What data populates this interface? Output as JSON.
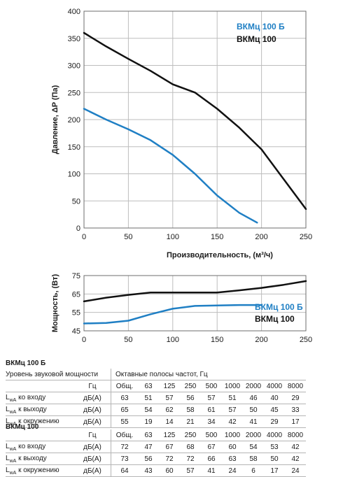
{
  "chart_data": [
    {
      "type": "line",
      "title": "",
      "xlabel": "Производительность, (м³/ч)",
      "ylabel": "Давление, ΔP (Па)",
      "xlim": [
        0,
        250
      ],
      "ylim": [
        0,
        400
      ],
      "xticks": [
        "0",
        "50",
        "100",
        "150",
        "200",
        "250"
      ],
      "yticks": [
        "0",
        "50",
        "100",
        "150",
        "200",
        "250",
        "300",
        "350",
        "400"
      ],
      "grid": true,
      "legend_position": "top-right",
      "series": [
        {
          "name": "ВКМц 100 Б",
          "color": "#1f7fc4",
          "x": [
            0,
            25,
            50,
            75,
            100,
            125,
            150,
            175,
            195
          ],
          "y": [
            220,
            200,
            182,
            162,
            135,
            100,
            60,
            28,
            10
          ]
        },
        {
          "name": "ВКМц 100",
          "color": "#111111",
          "x": [
            0,
            25,
            50,
            75,
            100,
            125,
            150,
            175,
            200,
            225,
            250
          ],
          "y": [
            360,
            335,
            312,
            290,
            265,
            250,
            220,
            185,
            145,
            90,
            35
          ]
        }
      ]
    },
    {
      "type": "line",
      "title": "",
      "xlabel": "",
      "ylabel": "Мощность, (Вт)",
      "xlim": [
        0,
        250
      ],
      "ylim": [
        45,
        75
      ],
      "xticks": [
        "0",
        "50",
        "100",
        "150",
        "200",
        "250"
      ],
      "yticks": [
        "45",
        "55",
        "65",
        "75"
      ],
      "grid": true,
      "legend_position": "right",
      "series": [
        {
          "name": "ВКМц 100 Б",
          "color": "#1f7fc4",
          "x": [
            0,
            25,
            50,
            75,
            100,
            125,
            150,
            175,
            200
          ],
          "y": [
            49,
            49.3,
            50.5,
            54,
            57,
            58.5,
            58.8,
            59,
            59
          ]
        },
        {
          "name": "ВКМц 100",
          "color": "#111111",
          "x": [
            0,
            25,
            50,
            75,
            100,
            125,
            150,
            175,
            200,
            225,
            250
          ],
          "y": [
            61,
            63,
            64.5,
            65.8,
            65.8,
            65.8,
            65.8,
            67,
            68.3,
            70,
            72
          ]
        }
      ]
    }
  ],
  "tables": [
    {
      "title": "ВКМц 100 Б",
      "header_label": "Уровень звуковой мощности",
      "header_bands_title": "Октавные полосы частот, Гц",
      "unit_header": "Гц",
      "columns": [
        "Общ.",
        "63",
        "125",
        "250",
        "500",
        "1000",
        "2000",
        "4000",
        "8000"
      ],
      "rows": [
        {
          "label": "LwA ко входу",
          "unit": "дБ(А)",
          "values": [
            "63",
            "51",
            "57",
            "56",
            "57",
            "51",
            "46",
            "40",
            "29"
          ]
        },
        {
          "label": "LwA к выходу",
          "unit": "дБ(А)",
          "values": [
            "65",
            "54",
            "62",
            "58",
            "61",
            "57",
            "50",
            "45",
            "33"
          ]
        },
        {
          "label": "LwA к окружению",
          "unit": "дБ(А)",
          "values": [
            "55",
            "19",
            "14",
            "21",
            "34",
            "42",
            "41",
            "29",
            "17"
          ]
        }
      ]
    },
    {
      "title": "ВКМц 100",
      "header_label": "",
      "unit_header": "Гц",
      "columns": [
        "Общ.",
        "63",
        "125",
        "250",
        "500",
        "1000",
        "2000",
        "4000",
        "8000"
      ],
      "rows": [
        {
          "label": "LwA ко входу",
          "unit": "дБ(А)",
          "values": [
            "72",
            "47",
            "67",
            "68",
            "67",
            "60",
            "54",
            "53",
            "42"
          ]
        },
        {
          "label": "LwA к выходу",
          "unit": "дБ(А)",
          "values": [
            "73",
            "56",
            "72",
            "72",
            "66",
            "63",
            "58",
            "50",
            "42"
          ]
        },
        {
          "label": "LwA к окружению",
          "unit": "дБ(А)",
          "values": [
            "64",
            "43",
            "60",
            "57",
            "41",
            "24",
            "6",
            "17",
            "24"
          ]
        }
      ]
    }
  ]
}
